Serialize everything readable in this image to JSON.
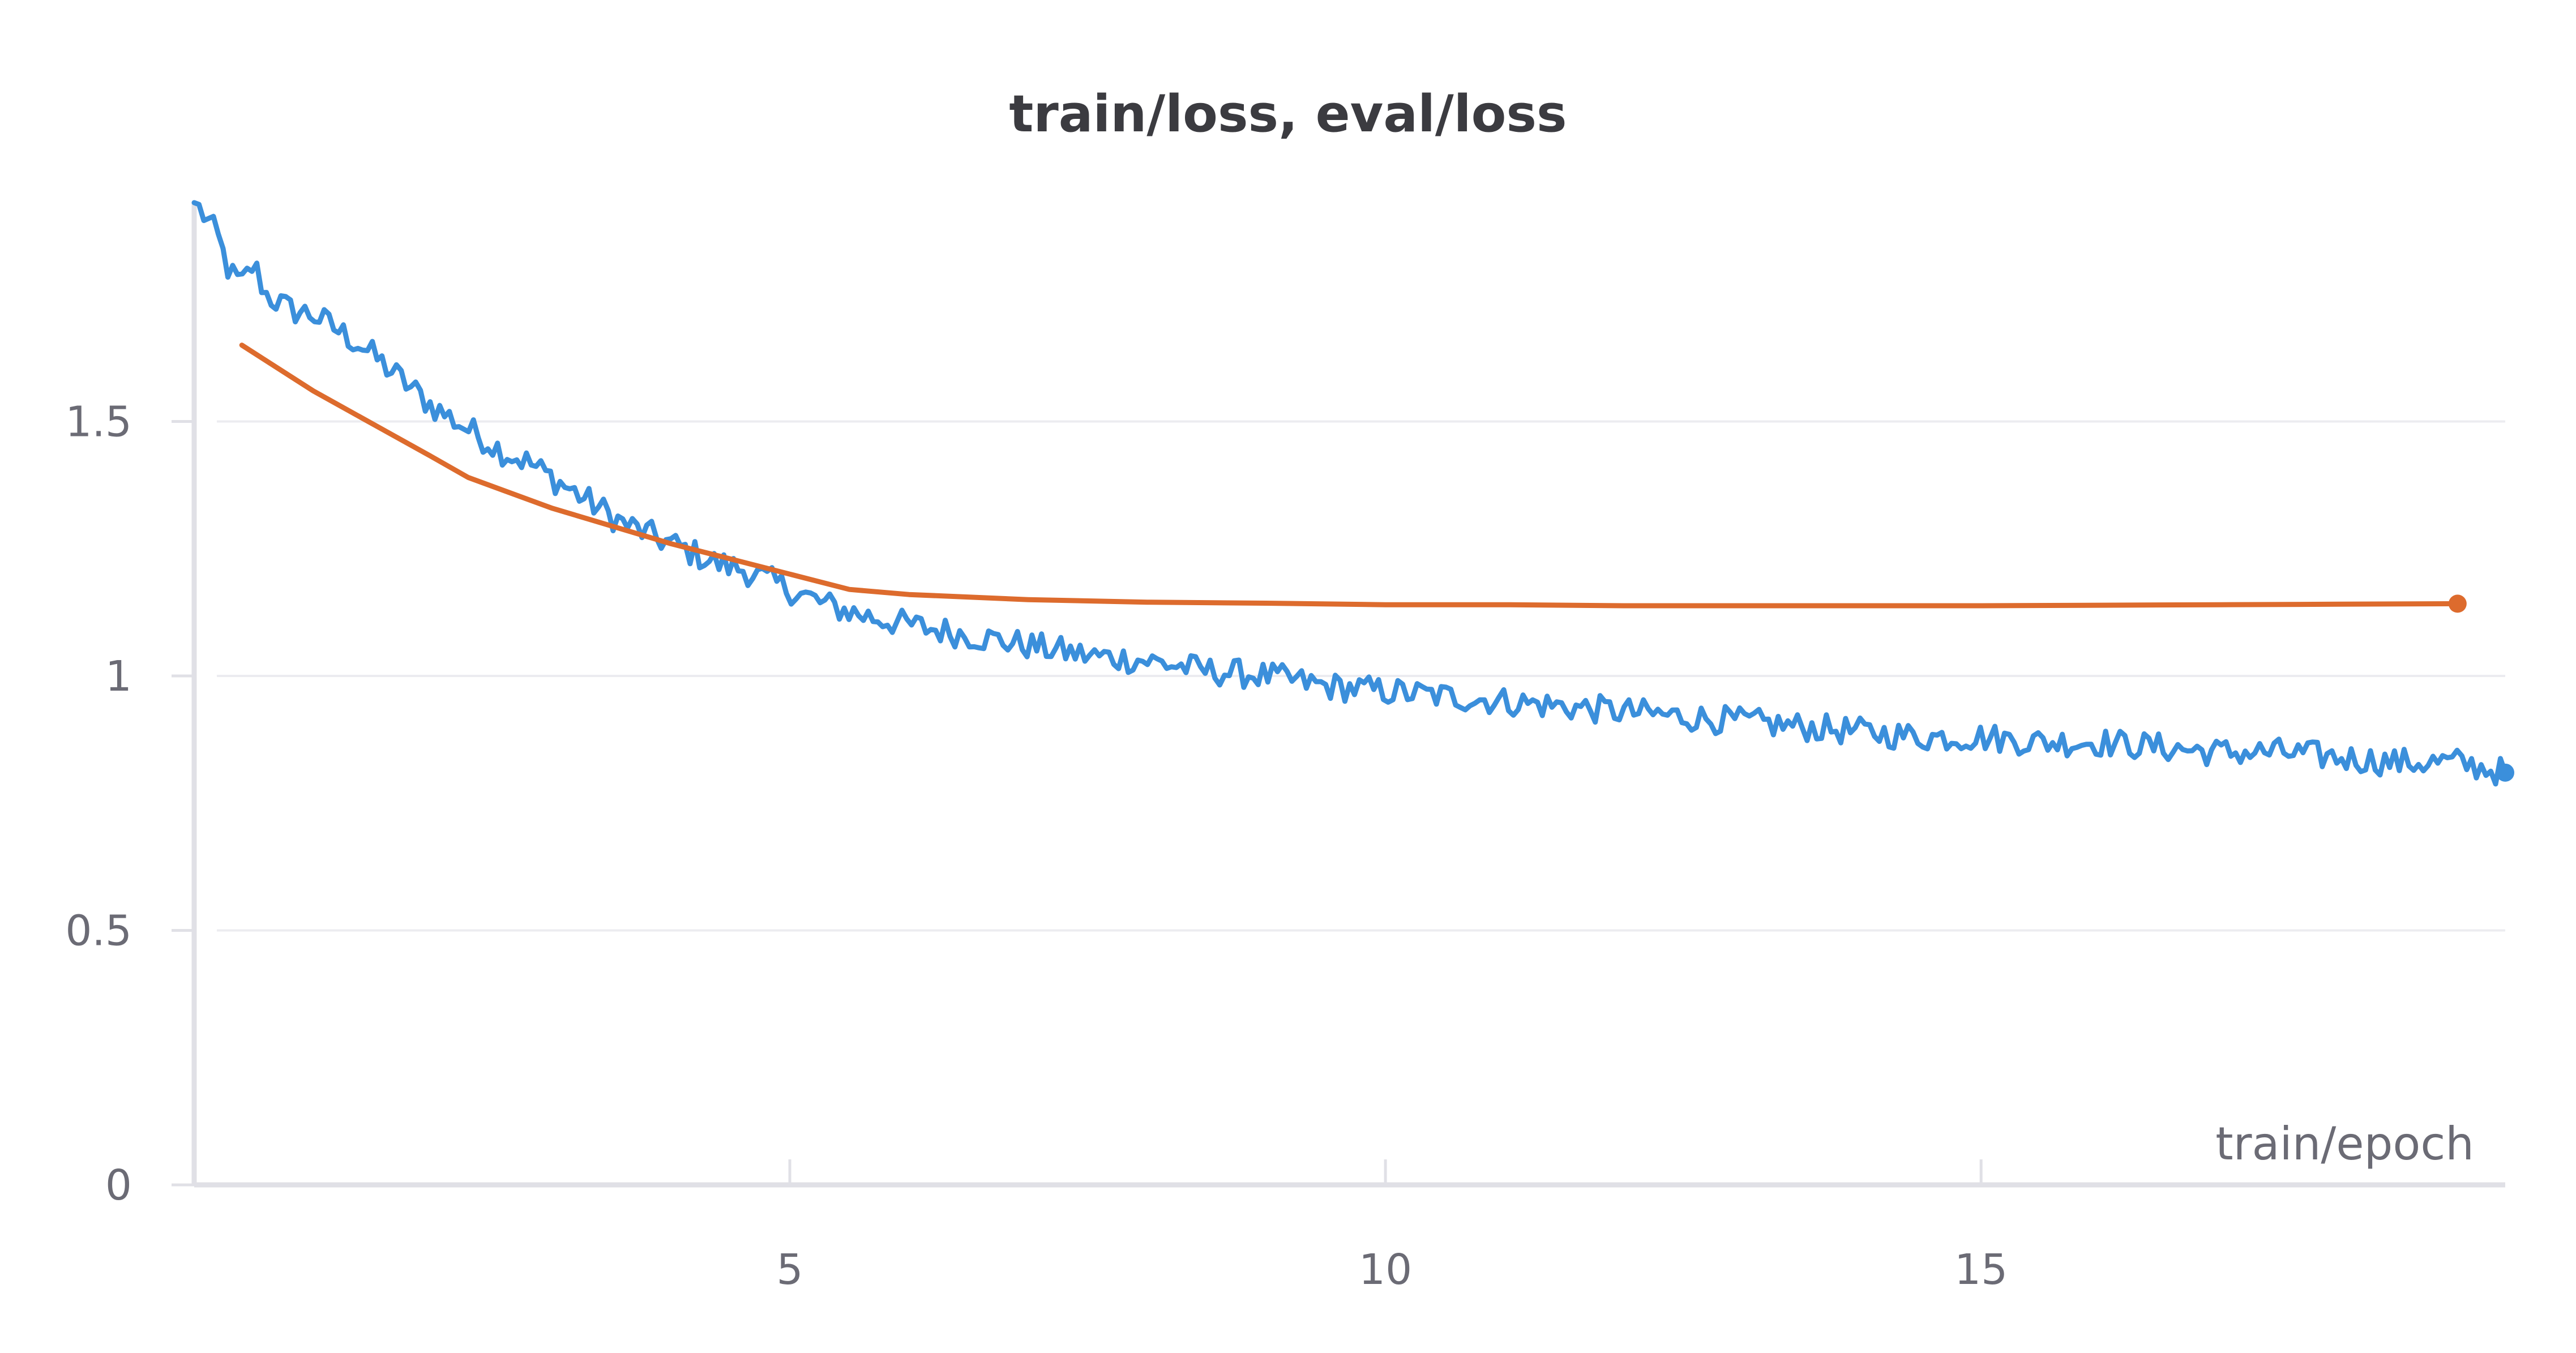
{
  "chart_data": {
    "type": "line",
    "title": "train/loss, eval/loss",
    "xlabel": "train/epoch",
    "ylabel": "",
    "xlim": [
      0,
      19.4
    ],
    "ylim": [
      0,
      1.93
    ],
    "x_ticks": [
      5,
      10,
      15
    ],
    "x_tick_labels": [
      "5",
      "10",
      "15"
    ],
    "y_ticks": [
      0,
      0.5,
      1,
      1.5
    ],
    "y_tick_labels": [
      "0",
      "0.5",
      "1",
      "1.5"
    ],
    "grid": true,
    "legend": "none",
    "colors": {
      "train": "#3b8fdb",
      "eval": "#dd6b2d",
      "grid": "#ececf0",
      "axis": "#e0e0e6"
    },
    "series": [
      {
        "key": "train",
        "x": [
          0.0,
          0.1,
          0.2,
          0.3,
          0.4,
          0.5,
          0.6,
          0.8,
          1.0,
          1.2,
          1.4,
          1.6,
          1.8,
          2.0,
          2.2,
          2.4,
          2.6,
          2.8,
          3.0,
          3.2,
          3.4,
          3.6,
          3.8,
          4.0,
          4.2,
          4.4,
          4.6,
          4.8,
          5.0,
          5.3,
          5.6,
          6.0,
          6.5,
          7.0,
          7.5,
          8.0,
          8.5,
          9.0,
          9.5,
          10.0,
          10.5,
          11.0,
          11.5,
          12.0,
          12.5,
          13.0,
          13.5,
          14.0,
          14.5,
          15.0,
          15.5,
          16.0,
          16.5,
          17.0,
          17.5,
          18.0,
          18.5,
          19.0,
          19.4
        ],
        "y": [
          1.93,
          1.9,
          1.86,
          1.79,
          1.77,
          1.81,
          1.75,
          1.72,
          1.71,
          1.68,
          1.65,
          1.61,
          1.57,
          1.53,
          1.5,
          1.47,
          1.44,
          1.42,
          1.39,
          1.36,
          1.33,
          1.3,
          1.28,
          1.26,
          1.24,
          1.22,
          1.21,
          1.19,
          1.17,
          1.14,
          1.12,
          1.1,
          1.08,
          1.06,
          1.04,
          1.03,
          1.01,
          1.0,
          0.98,
          0.97,
          0.96,
          0.95,
          0.94,
          0.93,
          0.92,
          0.91,
          0.9,
          0.89,
          0.88,
          0.88,
          0.87,
          0.87,
          0.86,
          0.85,
          0.85,
          0.84,
          0.83,
          0.83,
          0.81
        ],
        "noise": 0.028
      },
      {
        "key": "eval",
        "x": [
          0.4,
          1.0,
          2.0,
          2.3,
          3.0,
          4.0,
          5.0,
          5.5,
          6.0,
          7.0,
          8.0,
          9.0,
          10.0,
          11.0,
          12.0,
          13.0,
          14.0,
          15.0,
          16.0,
          17.0,
          18.0,
          19.0
        ],
        "y": [
          1.65,
          1.56,
          1.43,
          1.39,
          1.33,
          1.26,
          1.2,
          1.17,
          1.16,
          1.15,
          1.145,
          1.143,
          1.14,
          1.14,
          1.138,
          1.138,
          1.138,
          1.138,
          1.139,
          1.14,
          1.141,
          1.142
        ]
      }
    ]
  }
}
